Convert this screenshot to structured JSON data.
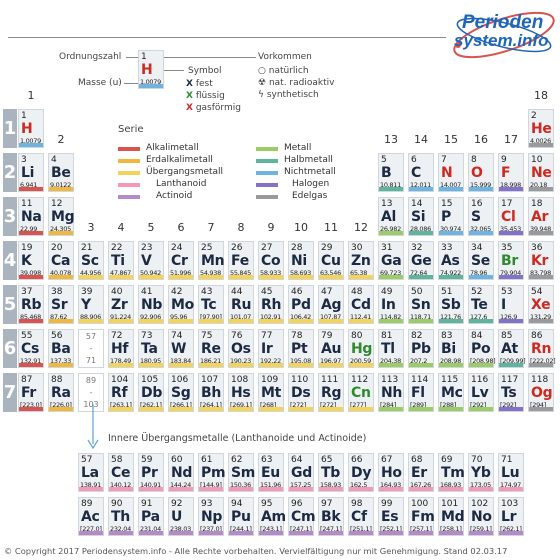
{
  "brand": {
    "line1": "Perioden",
    "line2": "system.info"
  },
  "key": {
    "ordnungszahl": "Ordnungszahl",
    "masse": "Masse (u)",
    "symbol": "Symbol",
    "vorkommen": "Vorkommen",
    "example": {
      "num": "1",
      "sym": "H",
      "mass": "1,0079"
    },
    "states": [
      {
        "mark": "X",
        "color": "#1c2a44",
        "label": "fest"
      },
      {
        "mark": "X",
        "color": "#2f8a2f",
        "label": "flüssig"
      },
      {
        "mark": "X",
        "color": "#cc2a22",
        "label": "gasförmig"
      }
    ],
    "occurrence": [
      {
        "icon": "○",
        "label": "natürlich"
      },
      {
        "icon": "☢",
        "label": "nat. radioaktiv"
      },
      {
        "icon": "ϟ",
        "label": "synthetisch"
      }
    ]
  },
  "serie": {
    "title": "Serie",
    "left": [
      {
        "label": "Alkalimetall",
        "color": "#d9534f"
      },
      {
        "label": "Erdalkalimetall",
        "color": "#f0b93d"
      },
      {
        "label": "Übergangsmetall",
        "color": "#f3d35a"
      },
      {
        "label": "Lanthanoid",
        "color": "#f29ab6"
      },
      {
        "label": "Actinoid",
        "color": "#b58bc7"
      }
    ],
    "right": [
      {
        "label": "Metall",
        "color": "#9ccc65"
      },
      {
        "label": "Halbmetall",
        "color": "#5fb49c"
      },
      {
        "label": "Nichtmetall",
        "color": "#6fb4e0"
      },
      {
        "label": "Halogen",
        "color": "#8472c9"
      },
      {
        "label": "Edelgas",
        "color": "#9a9a9a"
      }
    ]
  },
  "groups": [
    "1",
    "2",
    "3",
    "4",
    "5",
    "6",
    "7",
    "8",
    "9",
    "10",
    "11",
    "12",
    "13",
    "14",
    "15",
    "16",
    "17",
    "18"
  ],
  "periods": [
    "1",
    "2",
    "3",
    "4",
    "5",
    "6",
    "7"
  ],
  "lan_placeholder": {
    "a": "57",
    "b": "-",
    "c": "71"
  },
  "act_placeholder": {
    "a": "89",
    "b": "-",
    "c": "103"
  },
  "inner_title": "Innere Übergangsmetalle (Lanthanoide und Actinoide)",
  "footer": "© Copyright 2017 Periodensystem.info - Alle Rechte vorbehalten. Vervielfältigung nur mit Genehmigung. Stand 02.03.17",
  "elements": [
    {
      "n": "1",
      "s": "H",
      "m": "1,0079",
      "st": "gas",
      "c": "#6fb4e0",
      "g": 1,
      "p": 1
    },
    {
      "n": "2",
      "s": "He",
      "m": "4,0026",
      "st": "gas",
      "c": "#9a9a9a",
      "g": 18,
      "p": 1
    },
    {
      "n": "3",
      "s": "Li",
      "m": "6,941",
      "st": "solid",
      "c": "#d9534f",
      "g": 1,
      "p": 2
    },
    {
      "n": "4",
      "s": "Be",
      "m": "9,0122",
      "st": "solid",
      "c": "#f0b93d",
      "g": 2,
      "p": 2
    },
    {
      "n": "5",
      "s": "B",
      "m": "10,811",
      "st": "solid",
      "c": "#5fb49c",
      "g": 13,
      "p": 2
    },
    {
      "n": "6",
      "s": "C",
      "m": "12,011",
      "st": "solid",
      "c": "#6fb4e0",
      "g": 14,
      "p": 2
    },
    {
      "n": "7",
      "s": "N",
      "m": "14,007",
      "st": "gas",
      "c": "#6fb4e0",
      "g": 15,
      "p": 2
    },
    {
      "n": "8",
      "s": "O",
      "m": "15,999",
      "st": "gas",
      "c": "#6fb4e0",
      "g": 16,
      "p": 2
    },
    {
      "n": "9",
      "s": "F",
      "m": "18,998",
      "st": "gas",
      "c": "#8472c9",
      "g": 17,
      "p": 2
    },
    {
      "n": "10",
      "s": "Ne",
      "m": "20,18",
      "st": "gas",
      "c": "#9a9a9a",
      "g": 18,
      "p": 2
    },
    {
      "n": "11",
      "s": "Na",
      "m": "22,99",
      "st": "solid",
      "c": "#d9534f",
      "g": 1,
      "p": 3
    },
    {
      "n": "12",
      "s": "Mg",
      "m": "24,305",
      "st": "solid",
      "c": "#f0b93d",
      "g": 2,
      "p": 3
    },
    {
      "n": "13",
      "s": "Al",
      "m": "26,982",
      "st": "solid",
      "c": "#9ccc65",
      "g": 13,
      "p": 3
    },
    {
      "n": "14",
      "s": "Si",
      "m": "28,086",
      "st": "solid",
      "c": "#5fb49c",
      "g": 14,
      "p": 3
    },
    {
      "n": "15",
      "s": "P",
      "m": "30,974",
      "st": "solid",
      "c": "#6fb4e0",
      "g": 15,
      "p": 3
    },
    {
      "n": "16",
      "s": "S",
      "m": "32,065",
      "st": "solid",
      "c": "#6fb4e0",
      "g": 16,
      "p": 3
    },
    {
      "n": "17",
      "s": "Cl",
      "m": "35,453",
      "st": "gas",
      "c": "#8472c9",
      "g": 17,
      "p": 3
    },
    {
      "n": "18",
      "s": "Ar",
      "m": "39,948",
      "st": "gas",
      "c": "#9a9a9a",
      "g": 18,
      "p": 3
    },
    {
      "n": "19",
      "s": "K",
      "m": "39,098",
      "st": "solid",
      "c": "#d9534f",
      "g": 1,
      "p": 4
    },
    {
      "n": "20",
      "s": "Ca",
      "m": "40,078",
      "st": "solid",
      "c": "#f0b93d",
      "g": 2,
      "p": 4
    },
    {
      "n": "21",
      "s": "Sc",
      "m": "44,956",
      "st": "solid",
      "c": "#f3d35a",
      "g": 3,
      "p": 4
    },
    {
      "n": "22",
      "s": "Ti",
      "m": "47,867",
      "st": "solid",
      "c": "#f3d35a",
      "g": 4,
      "p": 4
    },
    {
      "n": "23",
      "s": "V",
      "m": "50,942",
      "st": "solid",
      "c": "#f3d35a",
      "g": 5,
      "p": 4
    },
    {
      "n": "24",
      "s": "Cr",
      "m": "51,996",
      "st": "solid",
      "c": "#f3d35a",
      "g": 6,
      "p": 4
    },
    {
      "n": "25",
      "s": "Mn",
      "m": "54,938",
      "st": "solid",
      "c": "#f3d35a",
      "g": 7,
      "p": 4
    },
    {
      "n": "26",
      "s": "Fe",
      "m": "55,845",
      "st": "solid",
      "c": "#f3d35a",
      "g": 8,
      "p": 4
    },
    {
      "n": "27",
      "s": "Co",
      "m": "58,933",
      "st": "solid",
      "c": "#f3d35a",
      "g": 9,
      "p": 4
    },
    {
      "n": "28",
      "s": "Ni",
      "m": "58,693",
      "st": "solid",
      "c": "#f3d35a",
      "g": 10,
      "p": 4
    },
    {
      "n": "29",
      "s": "Cu",
      "m": "63,546",
      "st": "solid",
      "c": "#f3d35a",
      "g": 11,
      "p": 4
    },
    {
      "n": "30",
      "s": "Zn",
      "m": "65,38",
      "st": "solid",
      "c": "#f3d35a",
      "g": 12,
      "p": 4
    },
    {
      "n": "31",
      "s": "Ga",
      "m": "69,723",
      "st": "solid",
      "c": "#9ccc65",
      "g": 13,
      "p": 4
    },
    {
      "n": "32",
      "s": "Ge",
      "m": "72,64",
      "st": "solid",
      "c": "#5fb49c",
      "g": 14,
      "p": 4
    },
    {
      "n": "33",
      "s": "As",
      "m": "74,922",
      "st": "solid",
      "c": "#5fb49c",
      "g": 15,
      "p": 4
    },
    {
      "n": "34",
      "s": "Se",
      "m": "78,96",
      "st": "solid",
      "c": "#6fb4e0",
      "g": 16,
      "p": 4
    },
    {
      "n": "35",
      "s": "Br",
      "m": "79,904",
      "st": "liquid",
      "c": "#8472c9",
      "g": 17,
      "p": 4
    },
    {
      "n": "36",
      "s": "Kr",
      "m": "83,798",
      "st": "gas",
      "c": "#9a9a9a",
      "g": 18,
      "p": 4
    },
    {
      "n": "37",
      "s": "Rb",
      "m": "85,468",
      "st": "solid",
      "c": "#d9534f",
      "g": 1,
      "p": 5
    },
    {
      "n": "38",
      "s": "Sr",
      "m": "87,62",
      "st": "solid",
      "c": "#f0b93d",
      "g": 2,
      "p": 5
    },
    {
      "n": "39",
      "s": "Y",
      "m": "88,906",
      "st": "solid",
      "c": "#f3d35a",
      "g": 3,
      "p": 5
    },
    {
      "n": "40",
      "s": "Zr",
      "m": "91,224",
      "st": "solid",
      "c": "#f3d35a",
      "g": 4,
      "p": 5
    },
    {
      "n": "41",
      "s": "Nb",
      "m": "92,906",
      "st": "solid",
      "c": "#f3d35a",
      "g": 5,
      "p": 5
    },
    {
      "n": "42",
      "s": "Mo",
      "m": "95,96",
      "st": "solid",
      "c": "#f3d35a",
      "g": 6,
      "p": 5
    },
    {
      "n": "43",
      "s": "Tc",
      "m": "[97,90]",
      "st": "solid",
      "c": "#f3d35a",
      "g": 7,
      "p": 5
    },
    {
      "n": "44",
      "s": "Ru",
      "m": "101,07",
      "st": "solid",
      "c": "#f3d35a",
      "g": 8,
      "p": 5
    },
    {
      "n": "45",
      "s": "Rh",
      "m": "102,91",
      "st": "solid",
      "c": "#f3d35a",
      "g": 9,
      "p": 5
    },
    {
      "n": "46",
      "s": "Pd",
      "m": "106,42",
      "st": "solid",
      "c": "#f3d35a",
      "g": 10,
      "p": 5
    },
    {
      "n": "47",
      "s": "Ag",
      "m": "107,87",
      "st": "solid",
      "c": "#f3d35a",
      "g": 11,
      "p": 5
    },
    {
      "n": "48",
      "s": "Cd",
      "m": "112,41",
      "st": "solid",
      "c": "#f3d35a",
      "g": 12,
      "p": 5
    },
    {
      "n": "49",
      "s": "In",
      "m": "114,82",
      "st": "solid",
      "c": "#9ccc65",
      "g": 13,
      "p": 5
    },
    {
      "n": "50",
      "s": "Sn",
      "m": "118,71",
      "st": "solid",
      "c": "#9ccc65",
      "g": 14,
      "p": 5
    },
    {
      "n": "51",
      "s": "Sb",
      "m": "121,76",
      "st": "solid",
      "c": "#5fb49c",
      "g": 15,
      "p": 5
    },
    {
      "n": "52",
      "s": "Te",
      "m": "127,6",
      "st": "solid",
      "c": "#5fb49c",
      "g": 16,
      "p": 5
    },
    {
      "n": "53",
      "s": "I",
      "m": "126,9",
      "st": "solid",
      "c": "#8472c9",
      "g": 17,
      "p": 5
    },
    {
      "n": "54",
      "s": "Xe",
      "m": "131,29",
      "st": "gas",
      "c": "#9a9a9a",
      "g": 18,
      "p": 5
    },
    {
      "n": "55",
      "s": "Cs",
      "m": "132,91",
      "st": "solid",
      "c": "#d9534f",
      "g": 1,
      "p": 6
    },
    {
      "n": "56",
      "s": "Ba",
      "m": "137,33",
      "st": "solid",
      "c": "#f0b93d",
      "g": 2,
      "p": 6
    },
    {
      "n": "72",
      "s": "Hf",
      "m": "178,49",
      "st": "solid",
      "c": "#f3d35a",
      "g": 4,
      "p": 6
    },
    {
      "n": "73",
      "s": "Ta",
      "m": "180,95",
      "st": "solid",
      "c": "#f3d35a",
      "g": 5,
      "p": 6
    },
    {
      "n": "74",
      "s": "W",
      "m": "183,84",
      "st": "solid",
      "c": "#f3d35a",
      "g": 6,
      "p": 6
    },
    {
      "n": "75",
      "s": "Re",
      "m": "186,21",
      "st": "solid",
      "c": "#f3d35a",
      "g": 7,
      "p": 6
    },
    {
      "n": "76",
      "s": "Os",
      "m": "190,23",
      "st": "solid",
      "c": "#f3d35a",
      "g": 8,
      "p": 6
    },
    {
      "n": "77",
      "s": "Ir",
      "m": "192,22",
      "st": "solid",
      "c": "#f3d35a",
      "g": 9,
      "p": 6
    },
    {
      "n": "78",
      "s": "Pt",
      "m": "195,08",
      "st": "solid",
      "c": "#f3d35a",
      "g": 10,
      "p": 6
    },
    {
      "n": "79",
      "s": "Au",
      "m": "196,97",
      "st": "solid",
      "c": "#f3d35a",
      "g": 11,
      "p": 6
    },
    {
      "n": "80",
      "s": "Hg",
      "m": "200,59",
      "st": "liquid",
      "c": "#f3d35a",
      "g": 12,
      "p": 6
    },
    {
      "n": "81",
      "s": "Tl",
      "m": "204,38",
      "st": "solid",
      "c": "#9ccc65",
      "g": 13,
      "p": 6
    },
    {
      "n": "82",
      "s": "Pb",
      "m": "207,2",
      "st": "solid",
      "c": "#9ccc65",
      "g": 14,
      "p": 6
    },
    {
      "n": "83",
      "s": "Bi",
      "m": "208,98",
      "st": "solid",
      "c": "#9ccc65",
      "g": 15,
      "p": 6
    },
    {
      "n": "84",
      "s": "Po",
      "m": "[208,98]",
      "st": "solid",
      "c": "#9ccc65",
      "g": 16,
      "p": 6
    },
    {
      "n": "85",
      "s": "At",
      "m": "[209,99]",
      "st": "solid",
      "c": "#5fb49c",
      "g": 17,
      "p": 6
    },
    {
      "n": "86",
      "s": "Rn",
      "m": "[222,02]",
      "st": "gas",
      "c": "#9a9a9a",
      "g": 18,
      "p": 6
    },
    {
      "n": "87",
      "s": "Fr",
      "m": "[223,0]",
      "st": "solid",
      "c": "#d9534f",
      "g": 1,
      "p": 7
    },
    {
      "n": "88",
      "s": "Ra",
      "m": "[226,0]",
      "st": "solid",
      "c": "#f0b93d",
      "g": 2,
      "p": 7
    },
    {
      "n": "104",
      "s": "Rf",
      "m": "[263,1]",
      "st": "solid",
      "c": "#f3d35a",
      "g": 4,
      "p": 7
    },
    {
      "n": "105",
      "s": "Db",
      "m": "[262,1]",
      "st": "solid",
      "c": "#f3d35a",
      "g": 5,
      "p": 7
    },
    {
      "n": "106",
      "s": "Sg",
      "m": "[266,1]",
      "st": "solid",
      "c": "#f3d35a",
      "g": 6,
      "p": 7
    },
    {
      "n": "107",
      "s": "Bh",
      "m": "[264,1]",
      "st": "solid",
      "c": "#f3d35a",
      "g": 7,
      "p": 7
    },
    {
      "n": "108",
      "s": "Hs",
      "m": "[269,1]",
      "st": "solid",
      "c": "#f3d35a",
      "g": 8,
      "p": 7
    },
    {
      "n": "109",
      "s": "Mt",
      "m": "[268]",
      "st": "solid",
      "c": "#f3d35a",
      "g": 9,
      "p": 7
    },
    {
      "n": "110",
      "s": "Ds",
      "m": "[272]",
      "st": "solid",
      "c": "#f3d35a",
      "g": 10,
      "p": 7
    },
    {
      "n": "111",
      "s": "Rg",
      "m": "[272]",
      "st": "solid",
      "c": "#f3d35a",
      "g": 11,
      "p": 7
    },
    {
      "n": "112",
      "s": "Cn",
      "m": "[277]",
      "st": "liquid",
      "c": "#f3d35a",
      "g": 12,
      "p": 7
    },
    {
      "n": "113",
      "s": "Nh",
      "m": "[284]",
      "st": "solid",
      "c": "#9ccc65",
      "g": 13,
      "p": 7
    },
    {
      "n": "114",
      "s": "Fl",
      "m": "[289]",
      "st": "solid",
      "c": "#9ccc65",
      "g": 14,
      "p": 7
    },
    {
      "n": "115",
      "s": "Mc",
      "m": "[288]",
      "st": "solid",
      "c": "#9ccc65",
      "g": 15,
      "p": 7
    },
    {
      "n": "116",
      "s": "Lv",
      "m": "[292]",
      "st": "solid",
      "c": "#9ccc65",
      "g": 16,
      "p": 7
    },
    {
      "n": "117",
      "s": "Ts",
      "m": "[292]",
      "st": "solid",
      "c": "#8472c9",
      "g": 17,
      "p": 7
    },
    {
      "n": "118",
      "s": "Og",
      "m": "[294]",
      "st": "gas",
      "c": "#9a9a9a",
      "g": 18,
      "p": 7
    }
  ],
  "lanthanides": [
    {
      "n": "57",
      "s": "La",
      "m": "138,91"
    },
    {
      "n": "58",
      "s": "Ce",
      "m": "140,12"
    },
    {
      "n": "59",
      "s": "Pr",
      "m": "140,91"
    },
    {
      "n": "60",
      "s": "Nd",
      "m": "144,24"
    },
    {
      "n": "61",
      "s": "Pm",
      "m": "[144,9]"
    },
    {
      "n": "62",
      "s": "Sm",
      "m": "150,36"
    },
    {
      "n": "63",
      "s": "Eu",
      "m": "151,96"
    },
    {
      "n": "64",
      "s": "Gd",
      "m": "157,25"
    },
    {
      "n": "65",
      "s": "Tb",
      "m": "158,93"
    },
    {
      "n": "66",
      "s": "Dy",
      "m": "162,5"
    },
    {
      "n": "67",
      "s": "Ho",
      "m": "164,93"
    },
    {
      "n": "68",
      "s": "Er",
      "m": "167,26"
    },
    {
      "n": "69",
      "s": "Tm",
      "m": "168,93"
    },
    {
      "n": "70",
      "s": "Yb",
      "m": "173,05"
    },
    {
      "n": "71",
      "s": "Lu",
      "m": "174,97"
    }
  ],
  "actinides": [
    {
      "n": "89",
      "s": "Ac",
      "m": "[227,0]"
    },
    {
      "n": "90",
      "s": "Th",
      "m": "232,04"
    },
    {
      "n": "91",
      "s": "Pa",
      "m": "231,04"
    },
    {
      "n": "92",
      "s": "U",
      "m": "238,03"
    },
    {
      "n": "93",
      "s": "Np",
      "m": "[237,0]"
    },
    {
      "n": "94",
      "s": "Pu",
      "m": "[244,1]"
    },
    {
      "n": "95",
      "s": "Am",
      "m": "[243,1]"
    },
    {
      "n": "96",
      "s": "Cm",
      "m": "[247,1]"
    },
    {
      "n": "97",
      "s": "Bk",
      "m": "[247,1]"
    },
    {
      "n": "98",
      "s": "Cf",
      "m": "[251,1]"
    },
    {
      "n": "99",
      "s": "Es",
      "m": "[252,1]"
    },
    {
      "n": "100",
      "s": "Fm",
      "m": "[257,1]"
    },
    {
      "n": "101",
      "s": "Md",
      "m": "[258,1]"
    },
    {
      "n": "102",
      "s": "No",
      "m": "[259,1]"
    },
    {
      "n": "103",
      "s": "Lr",
      "m": "[262,1]"
    }
  ],
  "colors": {
    "lanthanoid": "#f29ab6",
    "actinoid": "#b58bc7"
  }
}
